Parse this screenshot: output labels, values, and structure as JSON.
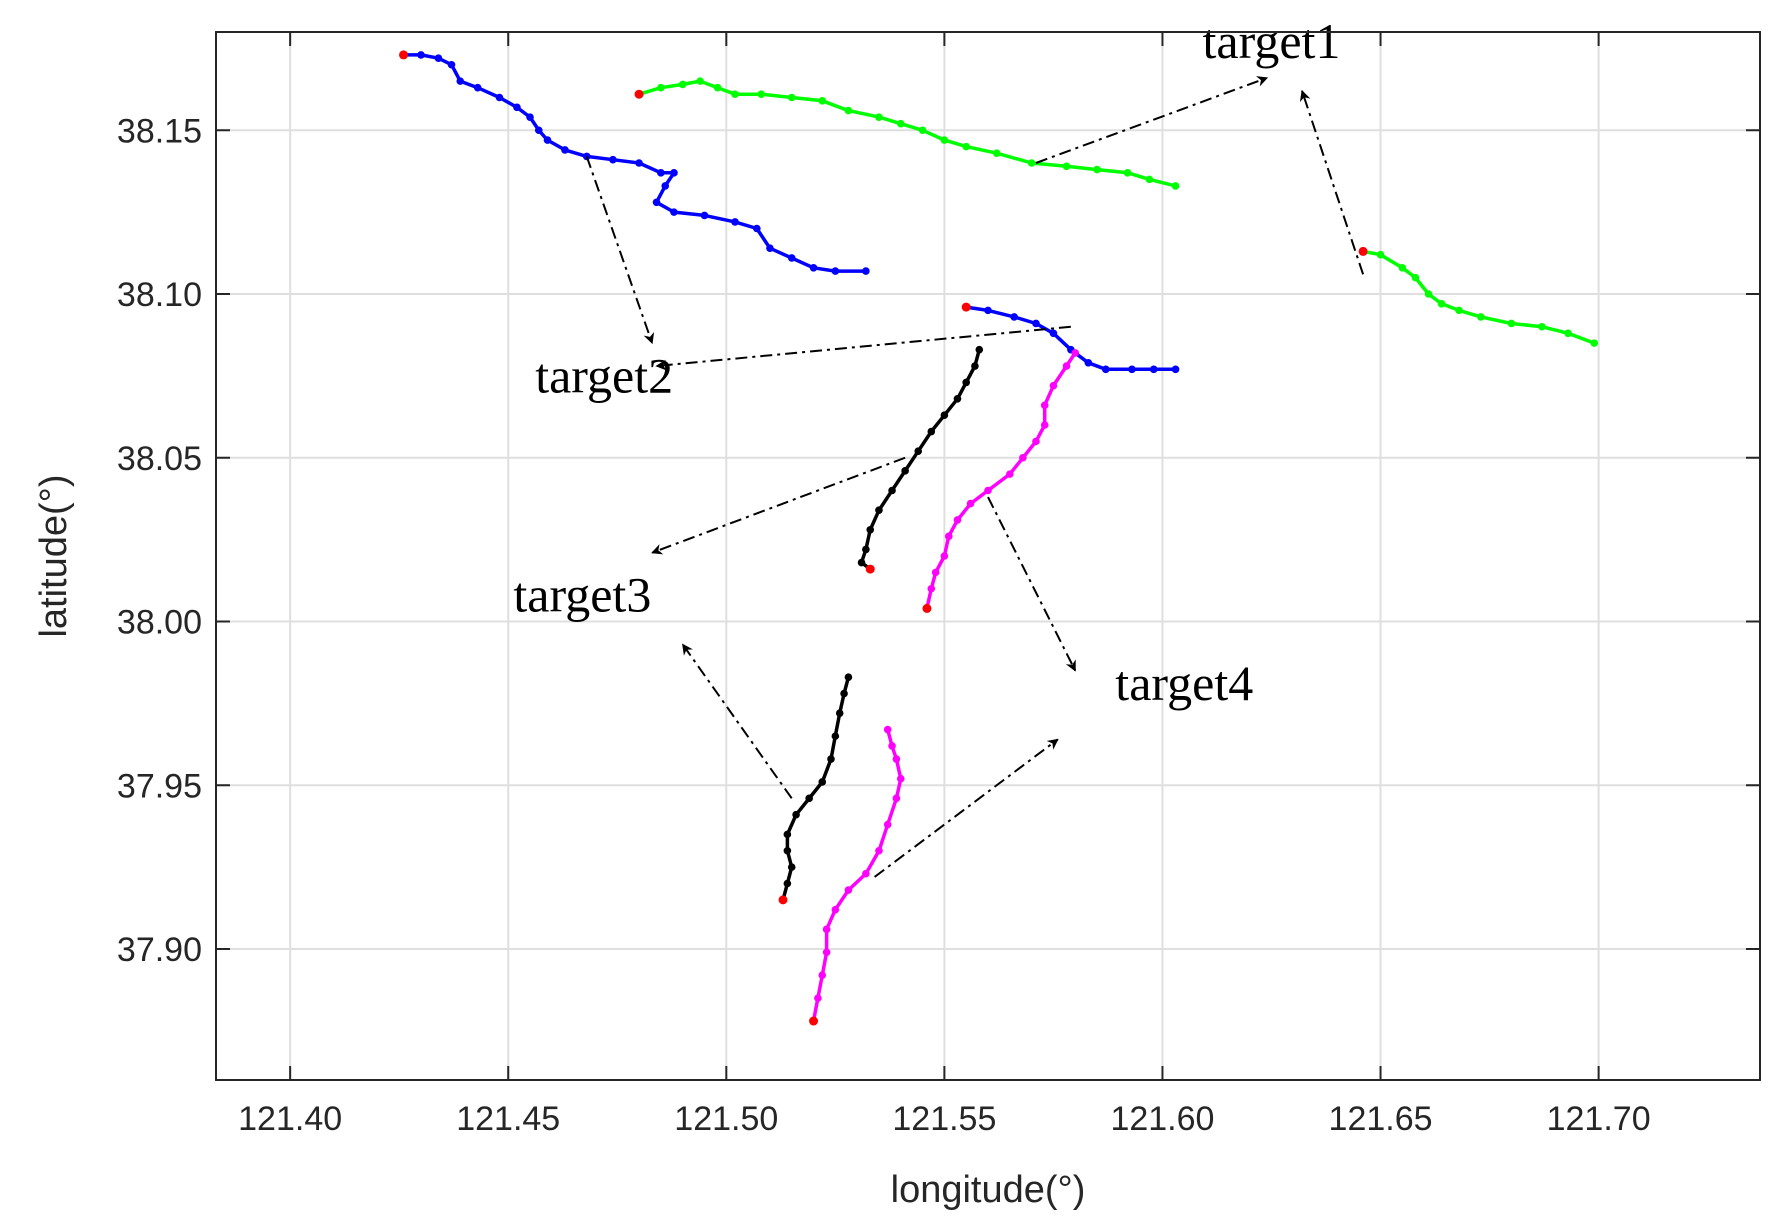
{
  "chart_data": {
    "type": "line",
    "xlabel": "longitude(°)",
    "ylabel": "latitude(°)",
    "xlim": [
      121.383,
      121.737
    ],
    "ylim": [
      37.86,
      38.18
    ],
    "grid": true,
    "xticks": [
      121.4,
      121.45,
      121.5,
      121.55,
      121.6,
      121.65,
      121.7
    ],
    "xtick_labels": [
      "121.40",
      "121.45",
      "121.50",
      "121.55",
      "121.60",
      "121.65",
      "121.70"
    ],
    "yticks": [
      37.9,
      37.95,
      38.0,
      38.05,
      38.1,
      38.15
    ],
    "ytick_labels": [
      "37.90",
      "37.95",
      "38.00",
      "38.05",
      "38.10",
      "38.15"
    ],
    "start_marker_color": "#ff0000",
    "series": [
      {
        "color": "#00ff00",
        "points": [
          [
            121.48,
            38.161
          ],
          [
            121.485,
            38.163
          ],
          [
            121.49,
            38.164
          ],
          [
            121.494,
            38.165
          ],
          [
            121.498,
            38.163
          ],
          [
            121.502,
            38.161
          ],
          [
            121.508,
            38.161
          ],
          [
            121.515,
            38.16
          ],
          [
            121.522,
            38.159
          ],
          [
            121.528,
            38.156
          ],
          [
            121.535,
            38.154
          ],
          [
            121.54,
            38.152
          ],
          [
            121.545,
            38.15
          ],
          [
            121.55,
            38.147
          ],
          [
            121.555,
            38.145
          ],
          [
            121.562,
            38.143
          ],
          [
            121.57,
            38.14
          ],
          [
            121.578,
            38.139
          ],
          [
            121.585,
            38.138
          ],
          [
            121.592,
            38.137
          ],
          [
            121.597,
            38.135
          ],
          [
            121.603,
            38.133
          ]
        ]
      },
      {
        "color": "#00ff00",
        "points": [
          [
            121.646,
            38.113
          ],
          [
            121.65,
            38.112
          ],
          [
            121.655,
            38.108
          ],
          [
            121.658,
            38.105
          ],
          [
            121.661,
            38.1
          ],
          [
            121.664,
            38.097
          ],
          [
            121.668,
            38.095
          ],
          [
            121.673,
            38.093
          ],
          [
            121.68,
            38.091
          ],
          [
            121.687,
            38.09
          ],
          [
            121.693,
            38.088
          ],
          [
            121.699,
            38.085
          ]
        ]
      },
      {
        "color": "#0000ff",
        "points": [
          [
            121.426,
            38.173
          ],
          [
            121.43,
            38.173
          ],
          [
            121.434,
            38.172
          ],
          [
            121.437,
            38.17
          ],
          [
            121.439,
            38.165
          ],
          [
            121.443,
            38.163
          ],
          [
            121.448,
            38.16
          ],
          [
            121.452,
            38.157
          ],
          [
            121.455,
            38.154
          ],
          [
            121.457,
            38.15
          ],
          [
            121.459,
            38.147
          ],
          [
            121.463,
            38.144
          ],
          [
            121.468,
            38.142
          ],
          [
            121.474,
            38.141
          ],
          [
            121.48,
            38.14
          ],
          [
            121.485,
            38.137
          ],
          [
            121.488,
            38.137
          ],
          [
            121.486,
            38.133
          ],
          [
            121.484,
            38.128
          ],
          [
            121.488,
            38.125
          ],
          [
            121.495,
            38.124
          ],
          [
            121.502,
            38.122
          ],
          [
            121.507,
            38.12
          ],
          [
            121.51,
            38.114
          ],
          [
            121.515,
            38.111
          ],
          [
            121.52,
            38.108
          ],
          [
            121.525,
            38.107
          ],
          [
            121.532,
            38.107
          ]
        ]
      },
      {
        "color": "#0000ff",
        "points": [
          [
            121.555,
            38.096
          ],
          [
            121.56,
            38.095
          ],
          [
            121.566,
            38.093
          ],
          [
            121.571,
            38.091
          ],
          [
            121.575,
            38.088
          ],
          [
            121.579,
            38.083
          ],
          [
            121.583,
            38.079
          ],
          [
            121.587,
            38.077
          ],
          [
            121.593,
            38.077
          ],
          [
            121.598,
            38.077
          ],
          [
            121.603,
            38.077
          ]
        ]
      },
      {
        "color": "#000000",
        "points": [
          [
            121.533,
            38.016
          ],
          [
            121.531,
            38.018
          ],
          [
            121.532,
            38.022
          ],
          [
            121.533,
            38.028
          ],
          [
            121.535,
            38.034
          ],
          [
            121.538,
            38.04
          ],
          [
            121.541,
            38.046
          ],
          [
            121.544,
            38.052
          ],
          [
            121.547,
            38.058
          ],
          [
            121.55,
            38.063
          ],
          [
            121.553,
            38.068
          ],
          [
            121.555,
            38.073
          ],
          [
            121.557,
            38.078
          ],
          [
            121.558,
            38.083
          ]
        ]
      },
      {
        "color": "#000000",
        "points": [
          [
            121.513,
            37.915
          ],
          [
            121.514,
            37.92
          ],
          [
            121.515,
            37.925
          ],
          [
            121.514,
            37.93
          ],
          [
            121.514,
            37.935
          ],
          [
            121.516,
            37.941
          ],
          [
            121.519,
            37.946
          ],
          [
            121.522,
            37.951
          ],
          [
            121.524,
            37.958
          ],
          [
            121.525,
            37.965
          ],
          [
            121.526,
            37.972
          ],
          [
            121.527,
            37.978
          ],
          [
            121.528,
            37.983
          ]
        ]
      },
      {
        "color": "#ff00ff",
        "points": [
          [
            121.546,
            38.004
          ],
          [
            121.547,
            38.01
          ],
          [
            121.548,
            38.015
          ],
          [
            121.55,
            38.02
          ],
          [
            121.551,
            38.026
          ],
          [
            121.553,
            38.031
          ],
          [
            121.556,
            38.036
          ],
          [
            121.56,
            38.04
          ],
          [
            121.565,
            38.045
          ],
          [
            121.568,
            38.05
          ],
          [
            121.571,
            38.055
          ],
          [
            121.573,
            38.06
          ],
          [
            121.573,
            38.066
          ],
          [
            121.575,
            38.072
          ],
          [
            121.578,
            38.078
          ],
          [
            121.58,
            38.082
          ]
        ]
      },
      {
        "color": "#ff00ff",
        "points": [
          [
            121.52,
            37.878
          ],
          [
            121.521,
            37.885
          ],
          [
            121.522,
            37.892
          ],
          [
            121.523,
            37.899
          ],
          [
            121.523,
            37.906
          ],
          [
            121.525,
            37.912
          ],
          [
            121.528,
            37.918
          ],
          [
            121.532,
            37.923
          ],
          [
            121.535,
            37.93
          ],
          [
            121.537,
            37.938
          ],
          [
            121.539,
            37.946
          ],
          [
            121.54,
            37.952
          ],
          [
            121.539,
            37.958
          ],
          [
            121.538,
            37.962
          ],
          [
            121.537,
            37.967
          ]
        ]
      }
    ],
    "annotations": [
      {
        "text": "target1",
        "x": 121.625,
        "y": 38.172
      },
      {
        "text": "target2",
        "x": 121.472,
        "y": 38.07
      },
      {
        "text": "target3",
        "x": 121.467,
        "y": 38.003
      },
      {
        "text": "target4",
        "x": 121.605,
        "y": 37.976
      }
    ],
    "arrows": [
      {
        "from": [
          121.571,
          38.14
        ],
        "to": [
          121.624,
          38.166
        ]
      },
      {
        "from": [
          121.646,
          38.106
        ],
        "to": [
          121.632,
          38.162
        ]
      },
      {
        "from": [
          121.468,
          38.142
        ],
        "to": [
          121.483,
          38.085
        ]
      },
      {
        "from": [
          121.579,
          38.09
        ],
        "to": [
          121.484,
          38.078
        ]
      },
      {
        "from": [
          121.541,
          38.05
        ],
        "to": [
          121.483,
          38.021
        ]
      },
      {
        "from": [
          121.515,
          37.946
        ],
        "to": [
          121.49,
          37.993
        ]
      },
      {
        "from": [
          121.56,
          38.038
        ],
        "to": [
          121.58,
          37.985
        ]
      },
      {
        "from": [
          121.534,
          37.922
        ],
        "to": [
          121.576,
          37.964
        ]
      }
    ]
  }
}
